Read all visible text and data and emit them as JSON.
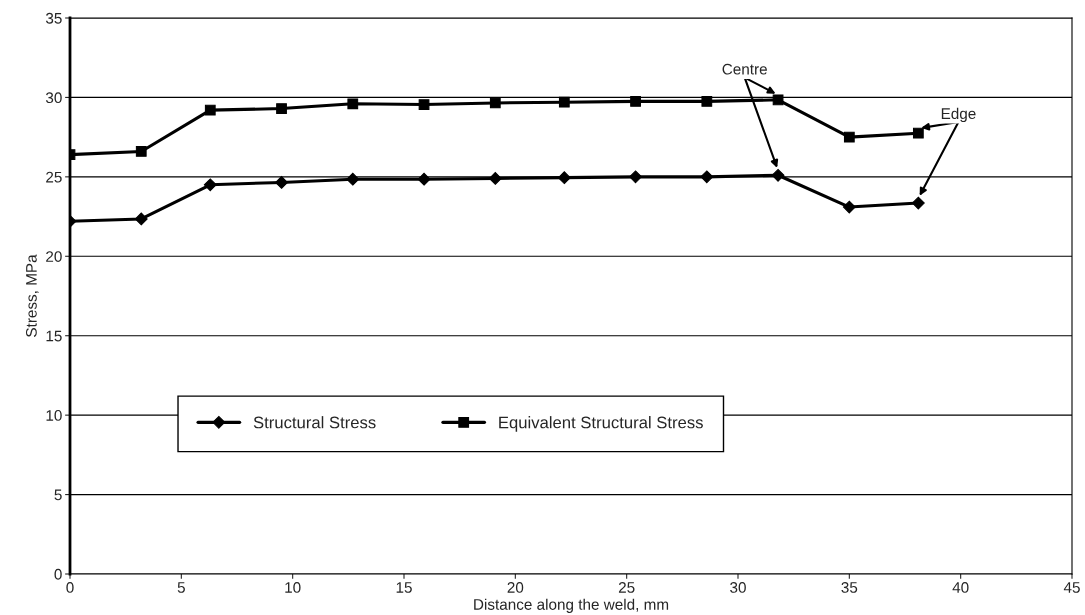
{
  "chart_data": {
    "type": "line",
    "xlabel": "Distance along the weld, mm",
    "ylabel": "Stress, MPa",
    "x": [
      0,
      3.2,
      6.3,
      9.5,
      12.7,
      15.9,
      19.1,
      22.2,
      25.4,
      28.6,
      31.8,
      35,
      38.1
    ],
    "series": [
      {
        "name": "Structural Stress",
        "color": "#000000",
        "marker": "diamond",
        "values": [
          22.2,
          22.35,
          24.5,
          24.65,
          24.85,
          24.85,
          24.9,
          24.95,
          25.0,
          25.0,
          25.1,
          23.1,
          23.35
        ]
      },
      {
        "name": "Equivalent Structural Stress",
        "color": "#000000",
        "marker": "square",
        "values": [
          26.4,
          26.6,
          29.2,
          29.3,
          29.6,
          29.55,
          29.65,
          29.7,
          29.75,
          29.75,
          29.85,
          27.5,
          27.75
        ]
      }
    ],
    "annotations": [
      {
        "text": "Centre",
        "x": 31.8,
        "y": 29.85
      },
      {
        "text": "Edge",
        "x": 38.1,
        "y": 27.75
      }
    ],
    "xlim": [
      0,
      45
    ],
    "xticks": [
      0,
      5,
      10,
      15,
      20,
      25,
      30,
      35,
      40,
      45
    ],
    "ylim": [
      0,
      35
    ],
    "yticks": [
      0,
      5,
      10,
      15,
      20,
      25,
      30,
      35
    ],
    "grid": "y",
    "legend": "center",
    "line_style": "solid"
  }
}
